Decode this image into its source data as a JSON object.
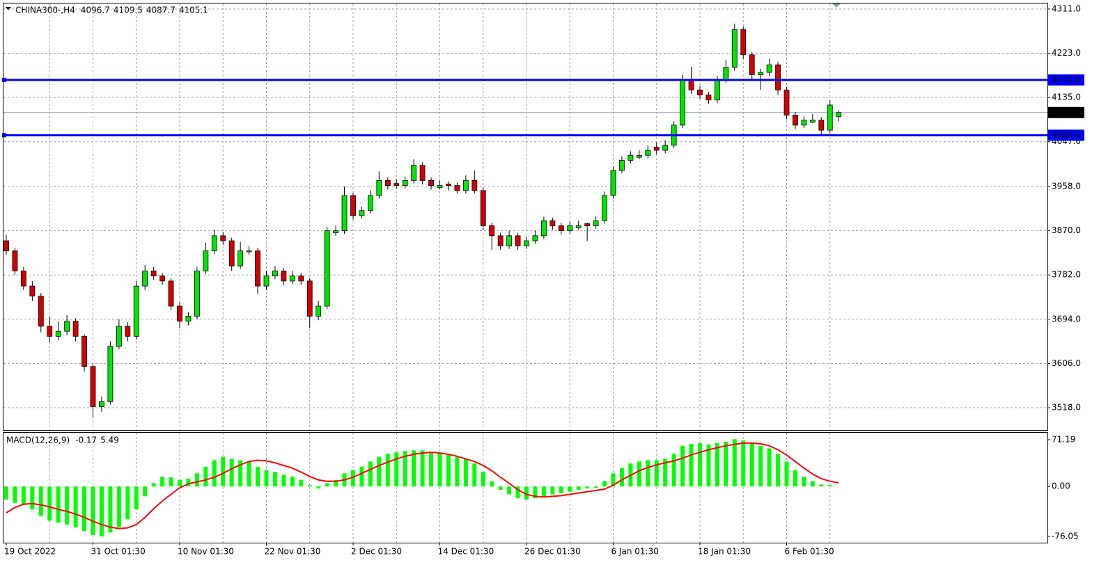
{
  "chart_data": [
    {
      "type": "candlestick",
      "title": "CHINA300-,H4",
      "categories": [
        "19 Oct 2022",
        null,
        null,
        null,
        null,
        null,
        null,
        null,
        null,
        null,
        "31 Oct 01:30",
        null,
        null,
        null,
        null,
        null,
        null,
        null,
        null,
        null,
        "10 Nov 01:30",
        null,
        null,
        null,
        null,
        null,
        null,
        null,
        null,
        null,
        "22 Nov 01:30",
        null,
        null,
        null,
        null,
        null,
        null,
        null,
        null,
        null,
        "2 Dec 01:30",
        null,
        null,
        null,
        null,
        null,
        null,
        null,
        null,
        null,
        "14 Dec 01:30",
        null,
        null,
        null,
        null,
        null,
        null,
        null,
        null,
        null,
        "26 Dec 01:30",
        null,
        null,
        null,
        null,
        null,
        null,
        null,
        null,
        null,
        "6 Jan 01:30",
        null,
        null,
        null,
        null,
        null,
        null,
        null,
        null,
        null,
        "18 Jan 01:30",
        null,
        null,
        null,
        null,
        null,
        null,
        null,
        null,
        null,
        "6 Feb 01:30",
        null,
        null,
        null,
        null,
        null,
        null
      ],
      "candles": [
        [
          3850,
          3862,
          3822,
          3830
        ],
        [
          3830,
          3836,
          3782,
          3790
        ],
        [
          3790,
          3798,
          3752,
          3760
        ],
        [
          3760,
          3770,
          3730,
          3740
        ],
        [
          3740,
          3746,
          3668,
          3680
        ],
        [
          3680,
          3700,
          3648,
          3660
        ],
        [
          3660,
          3690,
          3652,
          3670
        ],
        [
          3670,
          3702,
          3662,
          3690
        ],
        [
          3690,
          3696,
          3650,
          3660
        ],
        [
          3660,
          3664,
          3590,
          3600
        ],
        [
          3600,
          3606,
          3498,
          3520
        ],
        [
          3520,
          3540,
          3510,
          3530
        ],
        [
          3530,
          3650,
          3524,
          3640
        ],
        [
          3640,
          3694,
          3634,
          3680
        ],
        [
          3680,
          3688,
          3650,
          3660
        ],
        [
          3660,
          3770,
          3654,
          3760
        ],
        [
          3760,
          3802,
          3752,
          3790
        ],
        [
          3790,
          3798,
          3772,
          3780
        ],
        [
          3780,
          3786,
          3762,
          3770
        ],
        [
          3770,
          3776,
          3712,
          3720
        ],
        [
          3720,
          3728,
          3676,
          3690
        ],
        [
          3690,
          3708,
          3682,
          3700
        ],
        [
          3700,
          3798,
          3694,
          3790
        ],
        [
          3790,
          3846,
          3784,
          3830
        ],
        [
          3830,
          3872,
          3824,
          3860
        ],
        [
          3860,
          3868,
          3842,
          3850
        ],
        [
          3850,
          3856,
          3790,
          3800
        ],
        [
          3800,
          3848,
          3794,
          3830
        ],
        [
          3828,
          3840,
          3822,
          3830
        ],
        [
          3830,
          3836,
          3744,
          3760
        ],
        [
          3760,
          3790,
          3752,
          3780
        ],
        [
          3780,
          3800,
          3774,
          3790
        ],
        [
          3790,
          3796,
          3762,
          3770
        ],
        [
          3770,
          3790,
          3764,
          3780
        ],
        [
          3780,
          3786,
          3762,
          3770
        ],
        [
          3770,
          3776,
          3676,
          3700
        ],
        [
          3700,
          3730,
          3692,
          3720
        ],
        [
          3720,
          3878,
          3714,
          3870
        ],
        [
          3866,
          3880,
          3860,
          3870
        ],
        [
          3870,
          3958,
          3864,
          3940
        ],
        [
          3940,
          3946,
          3892,
          3900
        ],
        [
          3900,
          3918,
          3894,
          3910
        ],
        [
          3910,
          3950,
          3904,
          3940
        ],
        [
          3940,
          3988,
          3934,
          3970
        ],
        [
          3970,
          3976,
          3952,
          3960
        ],
        [
          3964,
          3972,
          3954,
          3960
        ],
        [
          3960,
          3978,
          3954,
          3970
        ],
        [
          3970,
          4012,
          3964,
          4000
        ],
        [
          4000,
          4006,
          3962,
          3970
        ],
        [
          3970,
          3976,
          3952,
          3960
        ],
        [
          3956,
          3970,
          3952,
          3960
        ],
        [
          3963,
          3968,
          3950,
          3960
        ],
        [
          3960,
          3966,
          3944,
          3950
        ],
        [
          3950,
          3980,
          3944,
          3970
        ],
        [
          3970,
          3990,
          3944,
          3950
        ],
        [
          3950,
          3956,
          3872,
          3880
        ],
        [
          3880,
          3886,
          3832,
          3860
        ],
        [
          3860,
          3866,
          3832,
          3840
        ],
        [
          3840,
          3870,
          3834,
          3860
        ],
        [
          3860,
          3866,
          3832,
          3840
        ],
        [
          3840,
          3858,
          3834,
          3850
        ],
        [
          3850,
          3870,
          3844,
          3860
        ],
        [
          3860,
          3898,
          3854,
          3890
        ],
        [
          3890,
          3896,
          3872,
          3880
        ],
        [
          3880,
          3886,
          3862,
          3870
        ],
        [
          3870,
          3888,
          3864,
          3880
        ],
        [
          3876,
          3890,
          3872,
          3880
        ],
        [
          3884,
          3886,
          3850,
          3880
        ],
        [
          3880,
          3898,
          3874,
          3890
        ],
        [
          3890,
          3948,
          3884,
          3940
        ],
        [
          3940,
          3998,
          3934,
          3990
        ],
        [
          3990,
          4018,
          3984,
          4010
        ],
        [
          4010,
          4028,
          4004,
          4020
        ],
        [
          4016,
          4030,
          4012,
          4020
        ],
        [
          4020,
          4040,
          4014,
          4030
        ],
        [
          4036,
          4046,
          4022,
          4030
        ],
        [
          4030,
          4050,
          4024,
          4040
        ],
        [
          4040,
          4088,
          4034,
          4080
        ],
        [
          4080,
          4180,
          4074,
          4170
        ],
        [
          4170,
          4196,
          4142,
          4150
        ],
        [
          4150,
          4158,
          4132,
          4140
        ],
        [
          4140,
          4146,
          4122,
          4130
        ],
        [
          4130,
          4178,
          4124,
          4170
        ],
        [
          4170,
          4210,
          4164,
          4195
        ],
        [
          4195,
          4282,
          4188,
          4270
        ],
        [
          4270,
          4276,
          4212,
          4220
        ],
        [
          4220,
          4226,
          4172,
          4180
        ],
        [
          4180,
          4192,
          4150,
          4185
        ],
        [
          4185,
          4212,
          4178,
          4200
        ],
        [
          4200,
          4206,
          4140,
          4150
        ],
        [
          4150,
          4156,
          4092,
          4100
        ],
        [
          4100,
          4106,
          4072,
          4080
        ],
        [
          4080,
          4098,
          4074,
          4090
        ],
        [
          4086,
          4102,
          4084,
          4090
        ],
        [
          4090,
          4096,
          4062,
          4070
        ],
        [
          4070,
          4130,
          4064,
          4120
        ],
        [
          4096.7,
          4109.5,
          4087.7,
          4105.1
        ]
      ],
      "up_color": "#00e600",
      "down_color": "#d40000",
      "ylim": [
        3473.7,
        4322
      ],
      "yticks": [
        {
          "value": 4311,
          "label": "4311.0"
        },
        {
          "value": 4223,
          "label": "4223.0"
        },
        {
          "value": 4135,
          "label": "4135.0"
        },
        {
          "value": 4047,
          "label": "4047.0"
        },
        {
          "value": 3958,
          "label": "3958.0"
        },
        {
          "value": 3870,
          "label": "3870.0"
        },
        {
          "value": 3782,
          "label": "3782.0"
        },
        {
          "value": 3694,
          "label": "3694.0"
        },
        {
          "value": 3606,
          "label": "3606.0"
        },
        {
          "value": 3518,
          "label": "3518.0"
        }
      ],
      "grid": true,
      "hlines": [
        {
          "value": 4170,
          "label": "4170.0"
        },
        {
          "value": 4060,
          "label": "4060.0"
        }
      ],
      "hline_color": "#0000ff"
    },
    {
      "type": "macd",
      "title": "MACD(12,26,9)",
      "histogram": [
        -20,
        -25,
        -28,
        -35,
        -45,
        -52,
        -55,
        -58,
        -62,
        -68,
        -74,
        -76,
        -70,
        -62,
        -50,
        -35,
        -15,
        5,
        15,
        14,
        10,
        12,
        20,
        30,
        40,
        45,
        42,
        40,
        38,
        30,
        25,
        22,
        18,
        15,
        10,
        2,
        -3,
        5,
        10,
        20,
        25,
        30,
        38,
        45,
        50,
        52,
        54,
        55,
        55,
        52,
        50,
        48,
        45,
        42,
        35,
        22,
        8,
        -5,
        -12,
        -18,
        -20,
        -18,
        -15,
        -12,
        -10,
        -8,
        -5,
        -3,
        -2,
        8,
        20,
        28,
        35,
        38,
        40,
        40,
        42,
        50,
        62,
        65,
        66,
        64,
        66,
        68,
        72,
        70,
        66,
        62,
        58,
        50,
        38,
        25,
        15,
        8,
        3,
        2,
        -0.17
      ],
      "signal": [
        -40,
        -32,
        -27,
        -26,
        -28,
        -31,
        -35,
        -38,
        -42,
        -47,
        -53,
        -58,
        -62,
        -64,
        -63,
        -58,
        -47,
        -34,
        -22,
        -12,
        -2,
        4,
        7,
        10,
        14,
        20,
        27,
        33,
        38,
        40,
        39,
        36,
        32,
        28,
        22,
        15,
        10,
        8,
        8,
        10,
        14,
        20,
        26,
        32,
        37,
        42,
        46,
        49,
        51,
        52,
        51,
        49,
        46,
        42,
        38,
        32,
        24,
        14,
        5,
        -5,
        -12,
        -15,
        -16,
        -15,
        -14,
        -12,
        -10,
        -8,
        -6,
        -4,
        2,
        10,
        17,
        24,
        29,
        33,
        36,
        39,
        43,
        48,
        52,
        56,
        59,
        62,
        64,
        66,
        66,
        65,
        62,
        56,
        48,
        38,
        28,
        19,
        12,
        8,
        5.49
      ],
      "histogram_color": "#00ff00",
      "signal_color": "#ff0000",
      "ylim": [
        -85.6,
        81.8
      ],
      "yticks": [
        71.19,
        {
          "value": 0,
          "label": "0.00"
        },
        -76.05
      ]
    }
  ]
}
